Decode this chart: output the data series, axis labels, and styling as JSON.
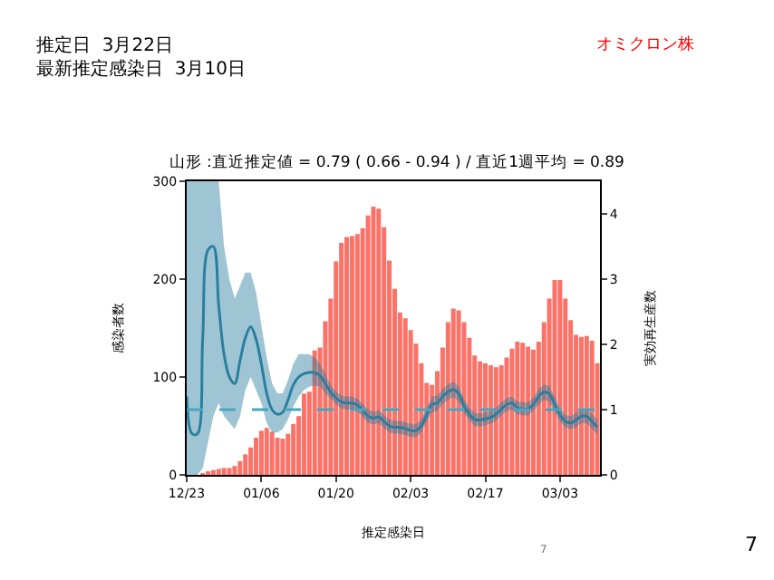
{
  "chart_data": {
    "type": "bar",
    "title": "山形 :直近推定値 = 0.79 ( 0.66 - 0.94 ) / 直近1週平均 = 0.89",
    "xlabel": "推定感染日",
    "ylabel": "感染者数",
    "y2label": "実効再生産数",
    "annotations": [
      "推定日  3月22日",
      "最新推定感染日  3月10日",
      "オミクロン株",
      "7",
      "7"
    ],
    "categories": [
      "12/23",
      null,
      null,
      null,
      null,
      null,
      null,
      null,
      null,
      null,
      null,
      null,
      null,
      null,
      "01/06",
      null,
      null,
      null,
      null,
      null,
      null,
      null,
      null,
      null,
      null,
      null,
      null,
      null,
      "01/20",
      null,
      null,
      null,
      null,
      null,
      null,
      null,
      null,
      null,
      null,
      null,
      null,
      null,
      "02/03",
      null,
      null,
      null,
      null,
      null,
      null,
      null,
      null,
      null,
      null,
      null,
      null,
      null,
      "02/17",
      null,
      null,
      null,
      null,
      null,
      null,
      null,
      null,
      null,
      null,
      null,
      null,
      null,
      "03/03",
      null,
      null,
      null,
      null,
      null,
      null,
      null
    ],
    "series": [
      {
        "color": "#fa7268",
        "values": [
          0,
          0,
          0,
          1,
          3,
          5,
          6,
          7,
          7,
          9,
          14,
          21,
          28,
          38,
          45,
          48,
          44,
          38,
          37,
          42,
          52,
          60,
          83,
          85,
          127,
          130,
          157,
          180,
          218,
          237,
          243,
          244,
          246,
          252,
          265,
          274,
          272,
          253,
          219,
          190,
          166,
          160,
          148,
          134,
          114,
          94,
          92,
          106,
          130,
          156,
          170,
          168,
          156,
          140,
          122,
          116,
          114,
          112,
          110,
          112,
          120,
          129,
          136,
          135,
          131,
          128,
          136,
          156,
          180,
          199,
          199,
          180,
          158,
          143,
          141,
          142,
          137,
          114
        ]
      },
      {
        "type": "line",
        "axis": "y2",
        "color": "#2a7fa0",
        "values": [
          1.2,
          0.63,
          0.63,
          2.1,
          3.45,
          3.5,
          2.6,
          1.85,
          1.5,
          1.4,
          1.75,
          2.1,
          2.27,
          2.08,
          1.7,
          1.25,
          1.0,
          0.93,
          0.96,
          1.15,
          1.38,
          1.5,
          1.55,
          1.57,
          1.57,
          1.52,
          1.4,
          1.27,
          1.18,
          1.12,
          1.1,
          1.1,
          1.07,
          0.99,
          0.9,
          0.87,
          0.89,
          0.82,
          0.75,
          0.73,
          0.73,
          0.71,
          0.68,
          0.68,
          0.75,
          0.92,
          1.08,
          1.1,
          1.2,
          1.27,
          1.31,
          1.24,
          1.06,
          0.93,
          0.85,
          0.84,
          0.86,
          0.88,
          0.93,
          1.01,
          1.08,
          1.1,
          1.03,
          1.01,
          1.01,
          1.08,
          1.2,
          1.27,
          1.24,
          1.08,
          0.92,
          0.82,
          0.8,
          0.84,
          0.9,
          0.9,
          0.82,
          0.73
        ],
        "upper": [
          4.5,
          4.5,
          4.5,
          4.5,
          4.5,
          4.5,
          4.5,
          3.5,
          3.0,
          2.7,
          2.9,
          3.1,
          3.1,
          2.8,
          2.3,
          1.8,
          1.4,
          1.25,
          1.25,
          1.45,
          1.7,
          1.85,
          1.85,
          1.85,
          1.8,
          1.7,
          1.55,
          1.37,
          1.28,
          1.22,
          1.2,
          1.2,
          1.17,
          1.09,
          1.0,
          0.97,
          0.99,
          0.92,
          0.85,
          0.83,
          0.83,
          0.81,
          0.78,
          0.78,
          0.85,
          1.02,
          1.2,
          1.22,
          1.32,
          1.39,
          1.43,
          1.36,
          1.17,
          1.03,
          0.95,
          0.94,
          0.96,
          0.98,
          1.03,
          1.11,
          1.18,
          1.2,
          1.13,
          1.11,
          1.11,
          1.18,
          1.32,
          1.39,
          1.36,
          1.19,
          1.02,
          0.92,
          0.9,
          0.95,
          1.01,
          1.01,
          0.93,
          0.85
        ],
        "lower": [
          0,
          0,
          0,
          0.1,
          0.5,
          0.9,
          1.1,
          0.9,
          0.8,
          0.7,
          0.9,
          1.3,
          1.5,
          1.3,
          1.1,
          0.8,
          0.65,
          0.65,
          0.7,
          0.85,
          1.05,
          1.2,
          1.3,
          1.35,
          1.37,
          1.35,
          1.25,
          1.17,
          1.08,
          1.02,
          1.0,
          1.0,
          0.97,
          0.89,
          0.8,
          0.77,
          0.79,
          0.72,
          0.65,
          0.63,
          0.63,
          0.61,
          0.58,
          0.58,
          0.65,
          0.82,
          0.96,
          0.98,
          1.08,
          1.15,
          1.19,
          1.12,
          0.95,
          0.83,
          0.75,
          0.74,
          0.76,
          0.78,
          0.83,
          0.91,
          0.98,
          1.0,
          0.93,
          0.91,
          0.91,
          0.98,
          1.08,
          1.15,
          1.12,
          0.97,
          0.82,
          0.72,
          0.7,
          0.73,
          0.79,
          0.79,
          0.71,
          0.61
        ]
      }
    ],
    "ylim": [
      0,
      300
    ],
    "yticks": [
      0,
      100,
      200,
      300
    ],
    "y2lim": [
      0,
      4.5
    ],
    "y2ticks": [
      0,
      1,
      2,
      3,
      4
    ],
    "ref_lines": [
      {
        "axis": "y2",
        "value": 1,
        "color": "#4aa6bf",
        "line_style": "dashed"
      }
    ]
  }
}
